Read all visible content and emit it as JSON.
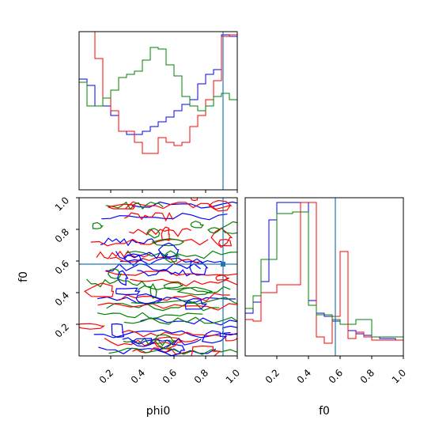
{
  "colors": {
    "series": [
      "#0000ff",
      "#ff0000",
      "#008000"
    ],
    "truth": "#1f77b4",
    "frame": "#000000"
  },
  "chart_data": [
    {
      "panel": "top-left",
      "type": "histogram",
      "xlim": [
        0,
        1
      ],
      "yticks": "none",
      "bins": 20,
      "series": [
        {
          "values": [
            0.7,
            0.66,
            0.53,
            0.53,
            0.47,
            0.37,
            0.35,
            0.35,
            0.37,
            0.4,
            0.43,
            0.46,
            0.5,
            0.54,
            0.57,
            0.67,
            0.73,
            0.76,
            0.98,
            0.97
          ]
        },
        {
          "values": [
            1.0,
            1.0,
            0.83,
            0.58,
            0.5,
            0.37,
            0.37,
            0.3,
            0.23,
            0.23,
            0.33,
            0.3,
            0.28,
            0.3,
            0.4,
            0.47,
            0.57,
            0.69,
            0.97,
            0.98
          ]
        },
        {
          "values": [
            0.68,
            0.53,
            0.53,
            0.58,
            0.63,
            0.71,
            0.73,
            0.75,
            0.82,
            0.9,
            0.89,
            0.79,
            0.72,
            0.59,
            0.53,
            0.5,
            0.53,
            0.59,
            0.61,
            0.57
          ]
        }
      ],
      "truth_x": 0.91
    },
    {
      "panel": "bottom-left",
      "type": "contour",
      "xlim": [
        0,
        1
      ],
      "ylim": [
        0,
        1
      ],
      "xticks": [
        "0.2",
        "0.4",
        "0.6",
        "0.8",
        "1.0"
      ],
      "yticks": [
        "0.2",
        "0.4",
        "0.6",
        "0.8",
        "1.0"
      ],
      "xlabel": "phi0",
      "ylabel": "f0",
      "truth_x": 0.91,
      "truth_y": 0.58
    },
    {
      "panel": "bottom-right",
      "type": "histogram",
      "xlim": [
        0,
        1
      ],
      "yticks": "none",
      "bins": 20,
      "series": [
        {
          "values": [
            0.27,
            0.34,
            0.47,
            0.86,
            0.97,
            0.97,
            0.97,
            0.97,
            0.35,
            0.27,
            0.25,
            0.22,
            0.2,
            0.16,
            0.14,
            0.13,
            0.12,
            0.11,
            0.11,
            0.1
          ]
        },
        {
          "values": [
            0.23,
            0.22,
            0.4,
            0.4,
            0.45,
            0.45,
            0.45,
            0.97,
            0.97,
            0.12,
            0.08,
            0.25,
            0.66,
            0.11,
            0.15,
            0.12,
            0.1,
            0.1,
            0.1,
            0.1
          ]
        },
        {
          "values": [
            0.3,
            0.38,
            0.61,
            0.61,
            0.9,
            0.9,
            0.91,
            0.91,
            0.32,
            0.26,
            0.26,
            0.23,
            0.2,
            0.2,
            0.23,
            0.23,
            0.12,
            0.12,
            0.12,
            0.12
          ]
        }
      ],
      "xticks": [
        "0.2",
        "0.4",
        "0.6",
        "0.8",
        "1.0"
      ],
      "xlabel": "f0",
      "truth_x": 0.57
    }
  ]
}
